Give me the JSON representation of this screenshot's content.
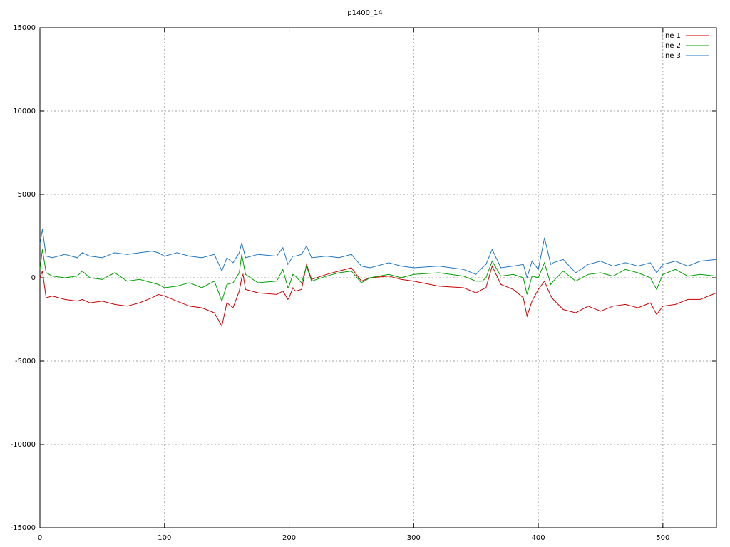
{
  "chart_data": {
    "type": "line",
    "title": "p1400_14",
    "x": [
      0,
      2,
      5,
      10,
      20,
      30,
      34,
      40,
      50,
      60,
      70,
      80,
      90,
      95,
      100,
      110,
      120,
      130,
      140,
      146,
      150,
      155,
      160,
      162,
      163,
      165,
      175,
      190,
      195,
      199,
      200,
      203,
      205,
      210,
      214,
      218,
      230,
      240,
      250,
      258,
      265,
      280,
      290,
      300,
      320,
      340,
      350,
      355,
      358,
      363,
      370,
      380,
      388,
      391,
      395,
      400,
      405,
      410,
      412,
      420,
      430,
      440,
      450,
      460,
      470,
      480,
      490,
      495,
      500,
      510,
      520,
      530,
      543
    ],
    "series": [
      {
        "name": "line 1",
        "color": "#cc0000",
        "values": [
          0,
          400,
          -1200,
          -1100,
          -1300,
          -1400,
          -1300,
          -1500,
          -1400,
          -1600,
          -1700,
          -1500,
          -1200,
          -1000,
          -1100,
          -1400,
          -1700,
          -1800,
          -2100,
          -2900,
          -1500,
          -1800,
          -800,
          0,
          200,
          -700,
          -900,
          -1000,
          -800,
          -1300,
          -1200,
          -600,
          -800,
          -700,
          800,
          -100,
          200,
          400,
          600,
          -200,
          0,
          100,
          -100,
          -200,
          -500,
          -600,
          -900,
          -700,
          -600,
          700,
          -400,
          -700,
          -1200,
          -2300,
          -1400,
          -700,
          -200,
          -1100,
          -1300,
          -1900,
          -2100,
          -1700,
          -2000,
          -1700,
          -1600,
          -1800,
          -1500,
          -2200,
          -1700,
          -1600,
          -1300,
          -1300,
          -900
        ]
      },
      {
        "name": "line 2",
        "color": "#00a000",
        "values": [
          500,
          1700,
          300,
          100,
          0,
          100,
          400,
          0,
          -100,
          300,
          -200,
          -100,
          -300,
          -400,
          -600,
          -500,
          -300,
          -600,
          -200,
          -1400,
          -400,
          -300,
          300,
          1400,
          1000,
          200,
          -300,
          -200,
          500,
          -600,
          -500,
          200,
          100,
          -300,
          700,
          -200,
          100,
          300,
          400,
          -300,
          0,
          200,
          0,
          200,
          300,
          100,
          -200,
          -200,
          0,
          1000,
          100,
          200,
          0,
          -1000,
          100,
          0,
          900,
          -400,
          -200,
          400,
          -200,
          200,
          300,
          100,
          500,
          300,
          0,
          -700,
          200,
          500,
          100,
          200,
          100
        ]
      },
      {
        "name": "line 3",
        "color": "#1f77c4",
        "values": [
          2000,
          2900,
          1300,
          1200,
          1400,
          1200,
          1500,
          1300,
          1200,
          1500,
          1400,
          1500,
          1600,
          1500,
          1300,
          1500,
          1300,
          1200,
          1400,
          400,
          1200,
          900,
          1500,
          2100,
          1800,
          1200,
          1400,
          1300,
          1800,
          800,
          900,
          1300,
          1300,
          1400,
          1900,
          1200,
          1300,
          1200,
          1400,
          700,
          600,
          900,
          700,
          600,
          700,
          500,
          200,
          600,
          800,
          1700,
          600,
          700,
          800,
          0,
          1000,
          500,
          2400,
          800,
          900,
          1100,
          300,
          800,
          1000,
          700,
          900,
          700,
          900,
          300,
          800,
          1000,
          700,
          1000,
          1100
        ]
      }
    ],
    "xlim": [
      0,
      543
    ],
    "ylim": [
      -15000,
      15000
    ],
    "xticks": [
      0,
      100,
      200,
      300,
      400,
      500
    ],
    "yticks": [
      -15000,
      -10000,
      -5000,
      0,
      5000,
      10000,
      15000
    ],
    "grid": true
  }
}
